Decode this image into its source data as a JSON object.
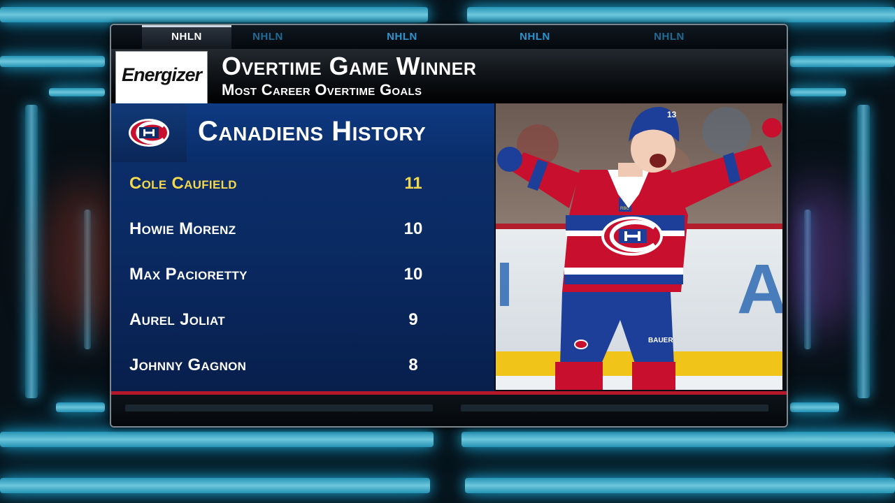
{
  "tabs": [
    "NHLN",
    "NHLN",
    "NHLN",
    "NHLN",
    "NHLN"
  ],
  "sponsor": {
    "logo_text": "Energizer"
  },
  "header": {
    "title": "Overtime Game Winner",
    "subtitle": "Most Career Overtime Goals"
  },
  "team": {
    "title": "Canadiens History",
    "logo_icon": "canadiens-ch-logo",
    "colors": {
      "red": "#c8102e",
      "blue": "#0c2f6c",
      "highlight": "#f2d84c"
    }
  },
  "leaders": [
    {
      "player": "Cole Caufield",
      "goals": "11",
      "highlight": true
    },
    {
      "player": "Howie Morenz",
      "goals": "10",
      "highlight": false
    },
    {
      "player": "Max Pacioretty",
      "goals": "10",
      "highlight": false
    },
    {
      "player": "Aurel Joliat",
      "goals": "9",
      "highlight": false
    },
    {
      "player": "Johnny Gagnon",
      "goals": "8",
      "highlight": false
    }
  ],
  "photo": {
    "jersey_number": "13",
    "patch_text": "RBC",
    "glove_text": "BAUER"
  }
}
